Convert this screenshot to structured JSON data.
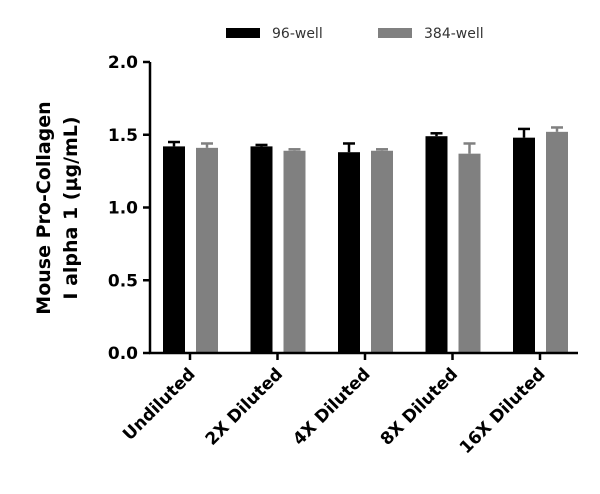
{
  "chart_data": {
    "type": "bar",
    "title": "",
    "xlabel": "",
    "ylabel_lines": [
      "Mouse Pro-Collagen",
      "I alpha 1 (µg/mL)"
    ],
    "ylim": [
      0,
      2.0
    ],
    "yticks": [
      "0.0",
      "0.5",
      "1.0",
      "1.5",
      "2.0"
    ],
    "ytick_values": [
      0,
      0.5,
      1.0,
      1.5,
      2.0
    ],
    "grid": false,
    "legend_placement": "top",
    "categories": [
      "Undiluted",
      "2X Diluted",
      "4X Diluted",
      "8X Diluted",
      "16X Diluted"
    ],
    "series": [
      {
        "name": "96-well",
        "color": "#000000",
        "values": [
          1.42,
          1.42,
          1.38,
          1.49,
          1.48
        ],
        "errors": [
          0.03,
          0.01,
          0.06,
          0.02,
          0.06
        ]
      },
      {
        "name": "384-well",
        "color": "#808080",
        "values": [
          1.41,
          1.39,
          1.39,
          1.37,
          1.52
        ],
        "errors": [
          0.03,
          0.01,
          0.01,
          0.07,
          0.03
        ]
      }
    ]
  }
}
